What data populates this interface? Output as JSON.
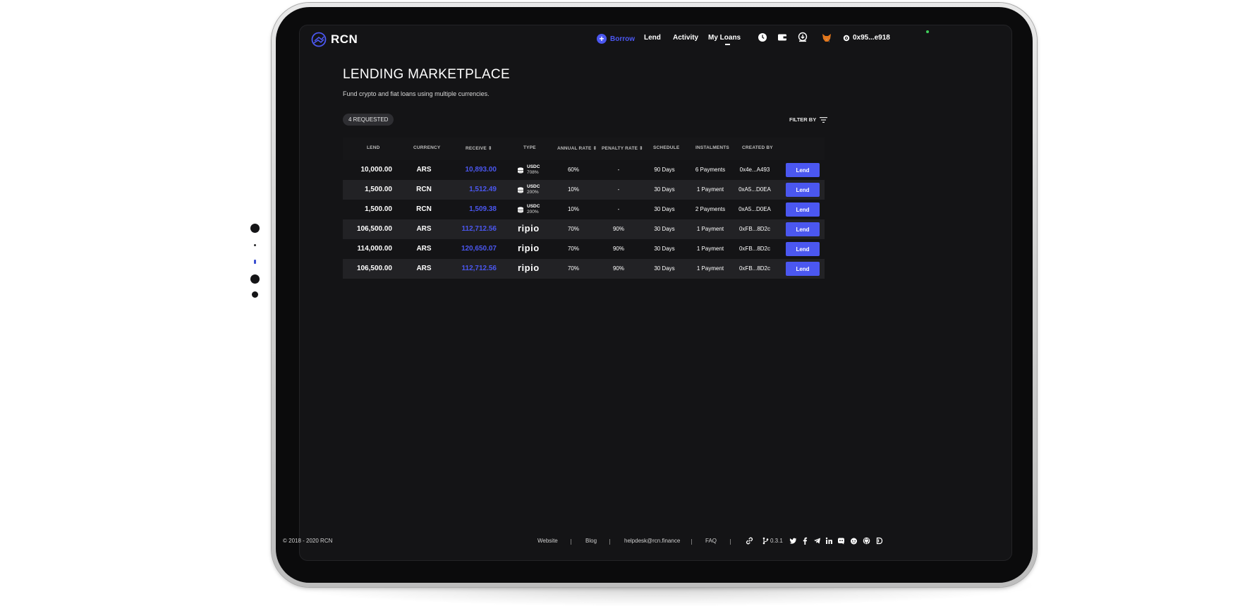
{
  "app": {
    "logo_text": "RCN"
  },
  "nav": {
    "borrow": "Borrow",
    "lend": "Lend",
    "activity": "Activity",
    "my_loans": "My Loans",
    "account": "0x95...e918"
  },
  "page": {
    "title": "LENDING MARKETPLACE",
    "subtitle": "Fund crypto and fiat loans using multiple currencies.",
    "badge": "4 REQUESTED",
    "filter": "FILTER BY"
  },
  "table": {
    "headers": {
      "lend": "LEND",
      "currency": "CURRENCY",
      "receive": "RECEIVE",
      "type": "TYPE",
      "annual_rate": "ANNUAL RATE",
      "penalty_rate": "PENALTY RATE",
      "schedule": "SCHEDULE",
      "instalments": "INSTALMENTS",
      "created_by": "CREATED BY"
    },
    "rows": [
      {
        "lend": "10,000.00",
        "currency": "ARS",
        "receive": "10,893.00",
        "type": "USDC",
        "type_pct": "708%",
        "annual": "60%",
        "penalty": "-",
        "schedule": "90 Days",
        "instalments": "6 Payments",
        "created_by": "0x4e...A493",
        "action": "Lend"
      },
      {
        "lend": "1,500.00",
        "currency": "RCN",
        "receive": "1,512.49",
        "type": "USDC",
        "type_pct": "200%",
        "annual": "10%",
        "penalty": "-",
        "schedule": "30 Days",
        "instalments": "1 Payment",
        "created_by": "0xA5...D0EA",
        "action": "Lend"
      },
      {
        "lend": "1,500.00",
        "currency": "RCN",
        "receive": "1,509.38",
        "type": "USDC",
        "type_pct": "200%",
        "annual": "10%",
        "penalty": "-",
        "schedule": "30 Days",
        "instalments": "2 Payments",
        "created_by": "0xA5...D0EA",
        "action": "Lend"
      },
      {
        "lend": "106,500.00",
        "currency": "ARS",
        "receive": "112,712.56",
        "type": "ripio",
        "annual": "70%",
        "penalty": "90%",
        "schedule": "30 Days",
        "instalments": "1 Payment",
        "created_by": "0xFB...8D2c",
        "action": "Lend"
      },
      {
        "lend": "114,000.00",
        "currency": "ARS",
        "receive": "120,650.07",
        "type": "ripio",
        "annual": "70%",
        "penalty": "90%",
        "schedule": "30 Days",
        "instalments": "1 Payment",
        "created_by": "0xFB...8D2c",
        "action": "Lend"
      },
      {
        "lend": "106,500.00",
        "currency": "ARS",
        "receive": "112,712.56",
        "type": "ripio",
        "annual": "70%",
        "penalty": "90%",
        "schedule": "30 Days",
        "instalments": "1 Payment",
        "created_by": "0xFB...8D2c",
        "action": "Lend"
      }
    ]
  },
  "footer": {
    "copyright": "© 2018 - 2020 RCN",
    "website": "Website",
    "blog": "Blog",
    "helpdesk": "helpdesk@rcn.finance",
    "faq": "FAQ",
    "version": "0.3.1"
  },
  "colors": {
    "accent": "#4b57f0",
    "background": "#141416",
    "row_alt": "#222225"
  }
}
